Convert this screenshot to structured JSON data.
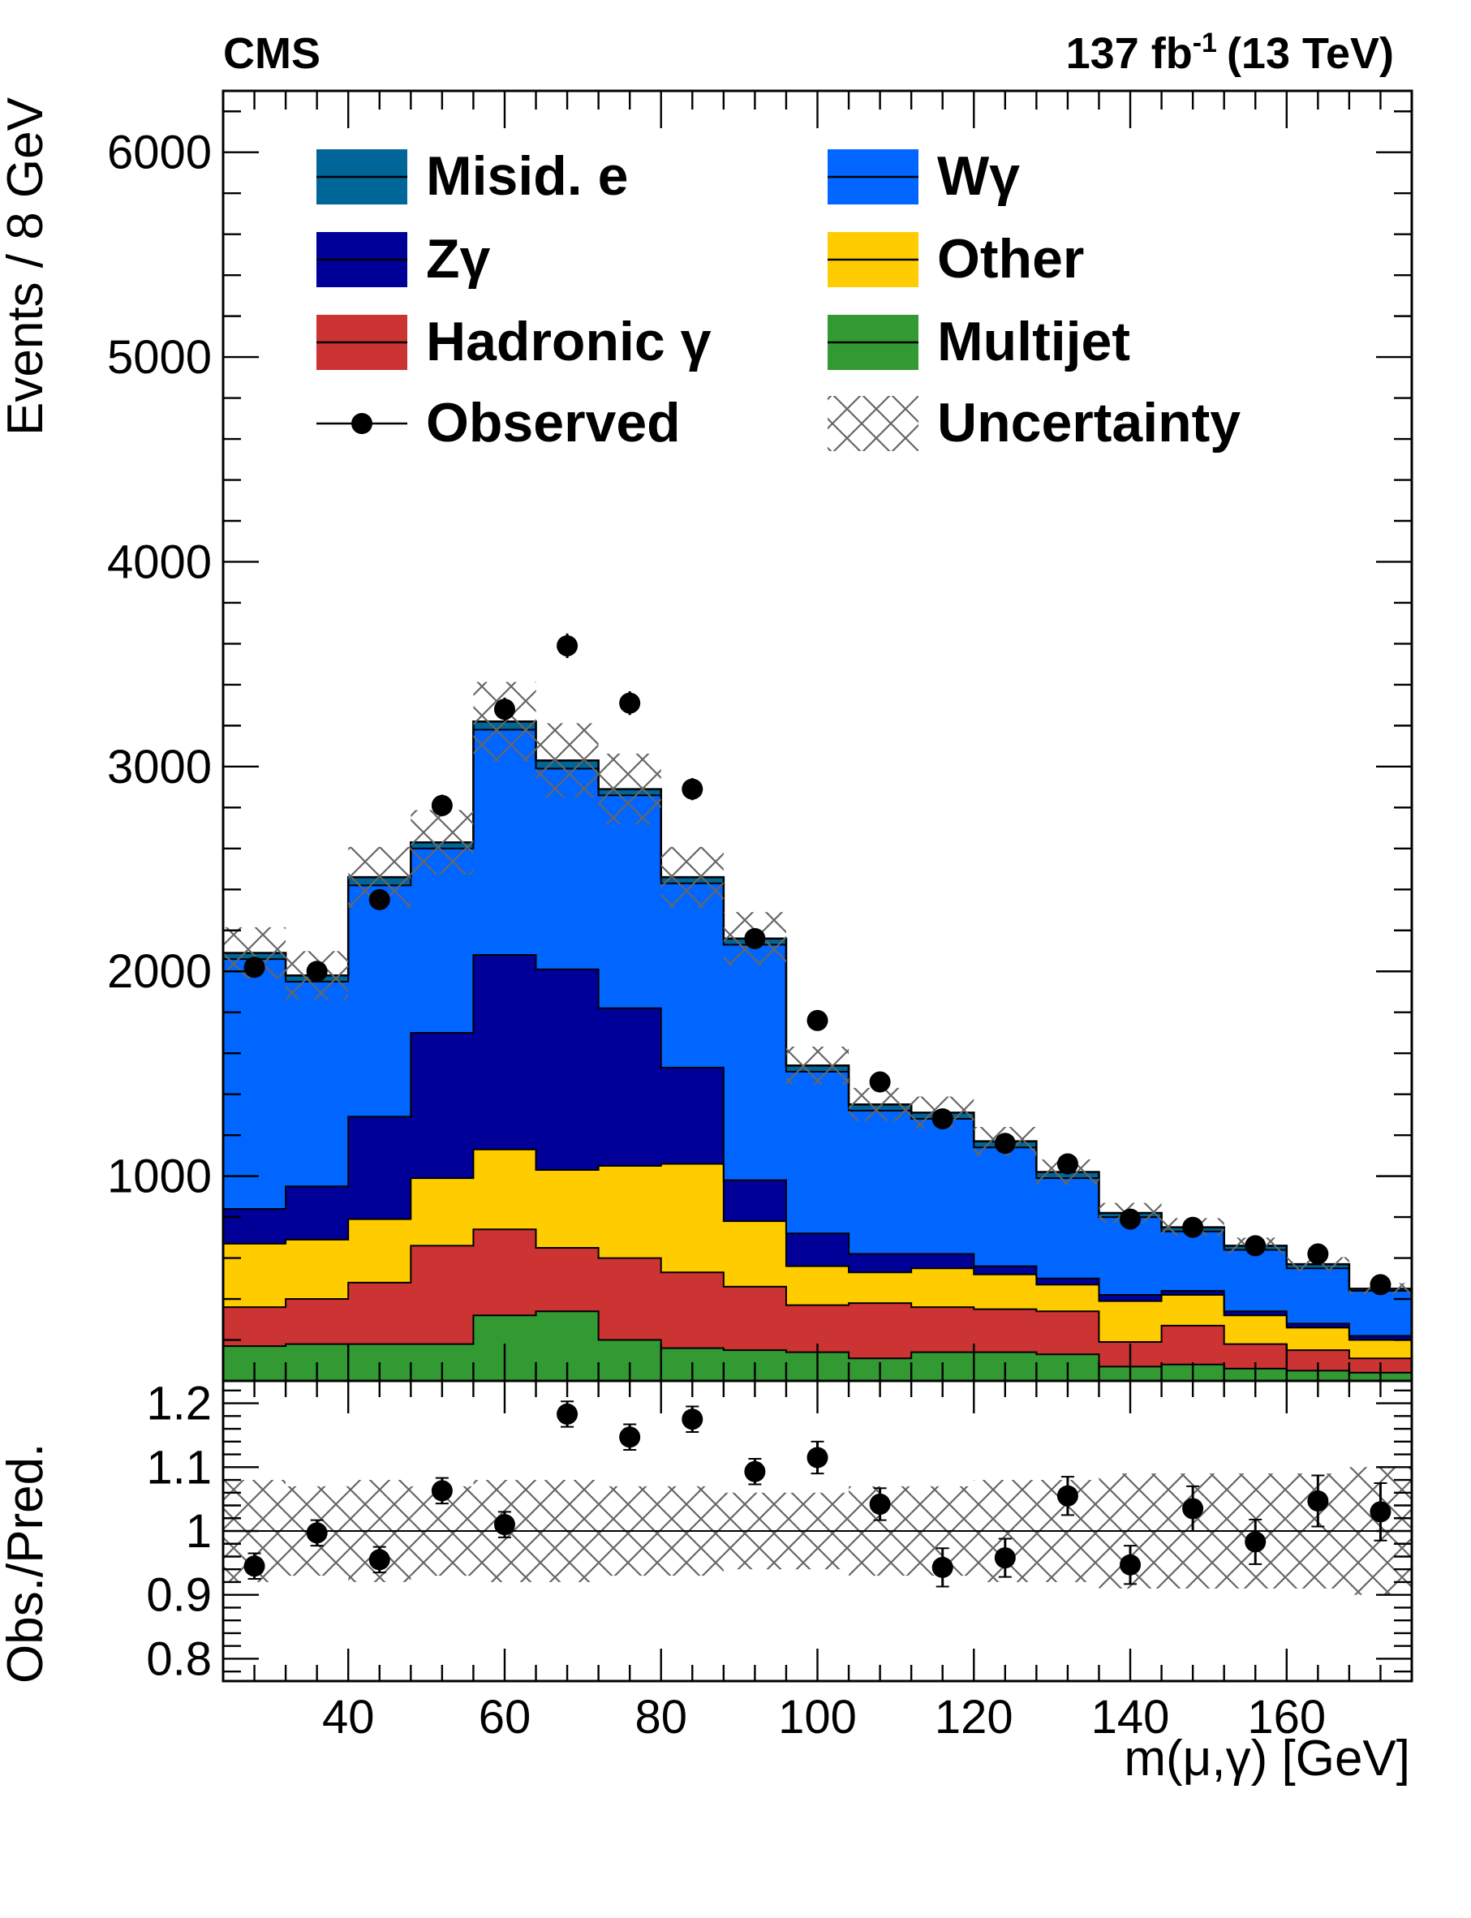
{
  "header": {
    "experiment": "CMS",
    "luminosity_value": "137 fb",
    "luminosity_exp": "-1",
    "energy": "(13 TeV)"
  },
  "chart_data": {
    "type": "bar",
    "stacked": true,
    "x_bins": [
      24,
      32,
      40,
      48,
      56,
      64,
      72,
      80,
      88,
      96,
      104,
      112,
      120,
      128,
      136,
      144,
      152,
      160,
      168,
      176
    ],
    "x_centers": [
      28,
      36,
      44,
      52,
      60,
      68,
      76,
      84,
      92,
      100,
      108,
      116,
      124,
      132,
      140,
      148,
      156,
      164,
      172
    ],
    "xlim": [
      24,
      176
    ],
    "ylim_main": [
      0,
      6300
    ],
    "xlabel": "m(μ,γ) [GeV]",
    "ylabel_main": "Events / 8 GeV",
    "x_ticks": [
      "40",
      "60",
      "80",
      "100",
      "120",
      "140",
      "160"
    ],
    "y_ticks_main": [
      "1000",
      "2000",
      "3000",
      "4000",
      "5000",
      "6000"
    ],
    "series": [
      {
        "name": "Multijet",
        "color": "#339933",
        "values": [
          170,
          180,
          180,
          180,
          320,
          340,
          200,
          160,
          150,
          140,
          110,
          140,
          140,
          130,
          70,
          80,
          60,
          50,
          40
        ]
      },
      {
        "name": "Hadronic γ",
        "color": "#cc3333",
        "values": [
          190,
          220,
          300,
          480,
          420,
          310,
          400,
          370,
          310,
          230,
          270,
          220,
          210,
          210,
          120,
          190,
          120,
          100,
          70
        ]
      },
      {
        "name": "Other",
        "color": "#ffcc00",
        "values": [
          310,
          290,
          310,
          330,
          390,
          380,
          450,
          530,
          320,
          190,
          150,
          190,
          170,
          130,
          200,
          150,
          140,
          110,
          90
        ]
      },
      {
        "name": "Zγ",
        "color": "#000099",
        "values": [
          170,
          260,
          500,
          710,
          950,
          980,
          770,
          470,
          200,
          160,
          90,
          70,
          40,
          30,
          30,
          20,
          20,
          20,
          20
        ]
      },
      {
        "name": "Wγ",
        "color": "#0066ff",
        "values": [
          1220,
          1000,
          1130,
          900,
          1100,
          980,
          1040,
          900,
          1150,
          790,
          700,
          660,
          580,
          490,
          380,
          290,
          300,
          270,
          220
        ]
      },
      {
        "name": "Misid. e",
        "color": "#006699",
        "values": [
          30,
          30,
          40,
          30,
          40,
          40,
          30,
          30,
          30,
          30,
          30,
          30,
          30,
          30,
          20,
          20,
          20,
          20,
          10
        ]
      }
    ],
    "observed": {
      "name": "Observed",
      "values": [
        2020,
        2000,
        2350,
        2810,
        3280,
        3590,
        3310,
        2890,
        2160,
        1760,
        1460,
        1280,
        1160,
        1060,
        790,
        750,
        660,
        620,
        470
      ],
      "errors": [
        45,
        45,
        48,
        53,
        57,
        60,
        58,
        54,
        46,
        42,
        38,
        36,
        34,
        33,
        28,
        27,
        26,
        25,
        22
      ]
    },
    "uncertainty": {
      "name": "Uncertainty",
      "main_halfwidth_fraction": 0.06,
      "ratio_low": [
        0.92,
        0.93,
        0.92,
        0.93,
        0.92,
        0.92,
        0.93,
        0.93,
        0.94,
        0.94,
        0.93,
        0.93,
        0.92,
        0.92,
        0.91,
        0.91,
        0.91,
        0.91,
        0.9
      ],
      "ratio_high": [
        1.08,
        1.07,
        1.08,
        1.07,
        1.08,
        1.08,
        1.07,
        1.07,
        1.06,
        1.06,
        1.07,
        1.07,
        1.08,
        1.08,
        1.09,
        1.09,
        1.09,
        1.09,
        1.1
      ]
    },
    "ratio": {
      "ylabel": "Obs./Pred.",
      "ylim": [
        0.765,
        1.235
      ],
      "y_ticks": [
        "0.8",
        "0.9",
        "1",
        "1.1",
        "1.2"
      ],
      "values": [
        0.945,
        0.997,
        0.955,
        1.063,
        1.01,
        1.183,
        1.147,
        1.175,
        1.093,
        1.115,
        1.042,
        0.943,
        0.958,
        1.055,
        0.947,
        1.035,
        0.983,
        1.047,
        1.03
      ],
      "errors": [
        0.02,
        0.02,
        0.02,
        0.02,
        0.02,
        0.02,
        0.02,
        0.02,
        0.02,
        0.025,
        0.025,
        0.03,
        0.03,
        0.03,
        0.03,
        0.035,
        0.035,
        0.04,
        0.045
      ]
    },
    "legend": {
      "placement": "top",
      "entries": [
        {
          "label": "Misid. e",
          "kind": "fill",
          "color": "#006699"
        },
        {
          "label": "Wγ",
          "kind": "fill",
          "color": "#0066ff"
        },
        {
          "label": "Zγ",
          "kind": "fill",
          "color": "#000099"
        },
        {
          "label": "Other",
          "kind": "fill",
          "color": "#ffcc00"
        },
        {
          "label": "Hadronic  γ",
          "kind": "fill",
          "color": "#cc3333"
        },
        {
          "label": "Multijet",
          "kind": "fill",
          "color": "#339933"
        },
        {
          "label": "Observed",
          "kind": "marker",
          "color": "#000000"
        },
        {
          "label": "Uncertainty",
          "kind": "hatch",
          "color": "#666666"
        }
      ]
    }
  }
}
